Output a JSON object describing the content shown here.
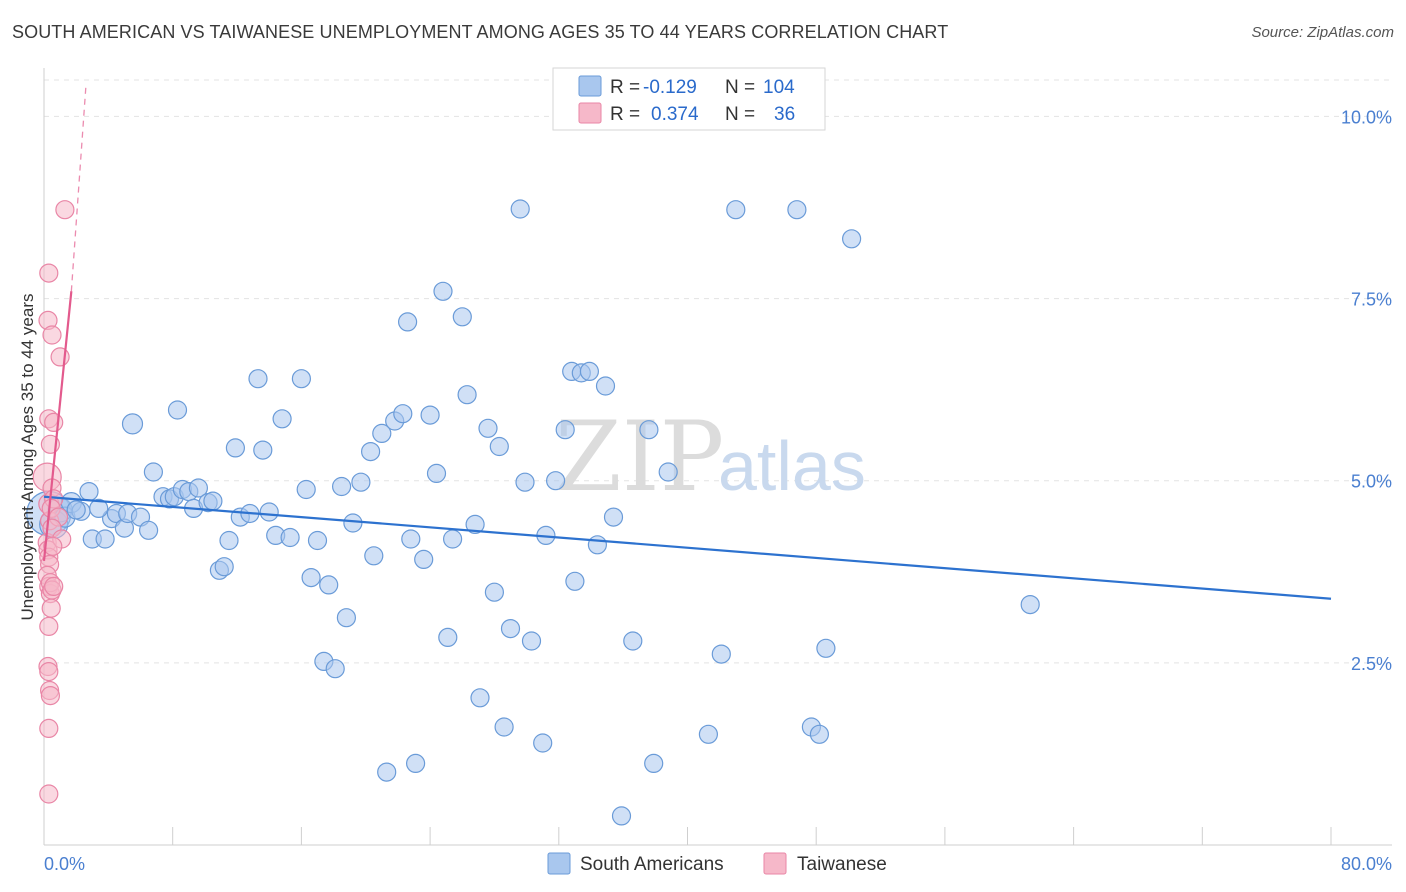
{
  "title": "SOUTH AMERICAN VS TAIWANESE UNEMPLOYMENT AMONG AGES 35 TO 44 YEARS CORRELATION CHART",
  "source": "Source: ZipAtlas.com",
  "watermark": {
    "zip": "ZIP",
    "atlas": "atlas"
  },
  "legend_top": {
    "rows": [
      {
        "r_label": "R = ",
        "r_value": "-0.129",
        "n_label": "N = ",
        "n_value": "104",
        "color": "#a9c7ee",
        "stroke": "#6a9bd8"
      },
      {
        "r_label": "R = ",
        "r_value": "0.374",
        "n_label": "N = ",
        "n_value": "36",
        "color": "#f6b8c9",
        "stroke": "#e986a6"
      }
    ]
  },
  "legend_bottom": [
    {
      "label": "South Americans",
      "color": "#a9c7ee",
      "stroke": "#6a9bd8"
    },
    {
      "label": "Taiwanese",
      "color": "#f6b8c9",
      "stroke": "#e986a6"
    }
  ],
  "chart_data": {
    "type": "scatter",
    "title": "SOUTH AMERICAN VS TAIWANESE UNEMPLOYMENT AMONG AGES 35 TO 44 YEARS CORRELATION CHART",
    "xlabel": "",
    "ylabel": "Unemployment Among Ages 35 to 44 years",
    "xlim": [
      0,
      80
    ],
    "ylim": [
      0,
      10.5
    ],
    "x_tick_labels": [
      "0.0%",
      "80.0%"
    ],
    "y_ticks": [
      2.5,
      5.0,
      7.5,
      10.0
    ],
    "y_tick_labels": [
      "2.5%",
      "5.0%",
      "7.5%",
      "10.0%"
    ],
    "x_minor_ticks": [
      0,
      8,
      16,
      24,
      32,
      40,
      48,
      56,
      64,
      72,
      80
    ],
    "grid": true,
    "series": [
      {
        "name": "South Americans",
        "color": "#a9c7ee",
        "stroke": "#6a9bd8",
        "trend": {
          "x": [
            0,
            80
          ],
          "y": [
            4.78,
            3.38
          ],
          "color": "#2d72cf"
        },
        "points": [
          [
            0.3,
            4.55,
            22
          ],
          [
            0.6,
            4.4,
            14
          ],
          [
            1.0,
            4.6,
            12
          ],
          [
            1.3,
            4.5,
            10
          ],
          [
            1.7,
            4.7,
            10
          ],
          [
            2.3,
            4.58,
            9
          ],
          [
            2.8,
            4.85,
            9
          ],
          [
            3.0,
            4.2,
            9
          ],
          [
            3.8,
            4.2,
            9
          ],
          [
            4.2,
            4.48,
            9
          ],
          [
            4.5,
            4.55,
            9
          ],
          [
            5.0,
            4.35,
            9
          ],
          [
            5.2,
            4.55,
            9
          ],
          [
            5.5,
            5.78,
            10
          ],
          [
            6.0,
            4.5,
            9
          ],
          [
            6.5,
            4.32,
            9
          ],
          [
            6.8,
            5.12,
            9
          ],
          [
            7.4,
            4.78,
            9
          ],
          [
            7.8,
            4.75,
            9
          ],
          [
            8.1,
            4.78,
            9
          ],
          [
            8.3,
            5.97,
            9
          ],
          [
            8.6,
            4.88,
            9
          ],
          [
            9.0,
            4.85,
            9
          ],
          [
            9.3,
            4.62,
            9
          ],
          [
            9.6,
            4.9,
            9
          ],
          [
            10.2,
            4.7,
            9
          ],
          [
            10.5,
            4.72,
            9
          ],
          [
            10.9,
            3.77,
            9
          ],
          [
            11.2,
            3.82,
            9
          ],
          [
            11.5,
            4.18,
            9
          ],
          [
            11.9,
            5.45,
            9
          ],
          [
            12.2,
            4.5,
            9
          ],
          [
            12.8,
            4.55,
            9
          ],
          [
            13.3,
            6.4,
            9
          ],
          [
            13.6,
            5.42,
            9
          ],
          [
            14.0,
            4.57,
            9
          ],
          [
            14.4,
            4.25,
            9
          ],
          [
            14.8,
            5.85,
            9
          ],
          [
            15.3,
            4.22,
            9
          ],
          [
            16.0,
            6.4,
            9
          ],
          [
            16.3,
            4.88,
            9
          ],
          [
            16.6,
            3.67,
            9
          ],
          [
            17.0,
            4.18,
            9
          ],
          [
            17.4,
            2.52,
            9
          ],
          [
            17.7,
            3.57,
            9
          ],
          [
            18.1,
            2.42,
            9
          ],
          [
            18.5,
            4.92,
            9
          ],
          [
            18.8,
            3.12,
            9
          ],
          [
            19.2,
            4.42,
            9
          ],
          [
            19.7,
            4.98,
            9
          ],
          [
            20.3,
            5.4,
            9
          ],
          [
            20.5,
            3.97,
            9
          ],
          [
            21.0,
            5.65,
            9
          ],
          [
            21.3,
            1.0,
            9
          ],
          [
            21.8,
            5.82,
            9
          ],
          [
            22.3,
            5.92,
            9
          ],
          [
            22.6,
            7.18,
            9
          ],
          [
            22.8,
            4.2,
            9
          ],
          [
            23.1,
            1.12,
            9
          ],
          [
            23.6,
            3.92,
            9
          ],
          [
            24.0,
            5.9,
            9
          ],
          [
            24.4,
            5.1,
            9
          ],
          [
            24.8,
            7.6,
            9
          ],
          [
            25.1,
            2.85,
            9
          ],
          [
            25.4,
            4.2,
            9
          ],
          [
            26.0,
            7.25,
            9
          ],
          [
            26.3,
            6.18,
            9
          ],
          [
            26.8,
            4.4,
            9
          ],
          [
            27.1,
            2.02,
            9
          ],
          [
            27.6,
            5.72,
            9
          ],
          [
            28.0,
            3.47,
            9
          ],
          [
            28.3,
            5.47,
            9
          ],
          [
            28.6,
            1.62,
            9
          ],
          [
            29.0,
            2.97,
            9
          ],
          [
            29.6,
            8.73,
            9
          ],
          [
            29.9,
            4.98,
            9
          ],
          [
            30.3,
            2.8,
            9
          ],
          [
            31.0,
            1.4,
            9
          ],
          [
            31.2,
            4.25,
            9
          ],
          [
            31.8,
            5.0,
            9
          ],
          [
            32.4,
            5.7,
            9
          ],
          [
            32.8,
            6.5,
            9
          ],
          [
            33.0,
            3.62,
            9
          ],
          [
            33.4,
            6.48,
            9
          ],
          [
            33.9,
            6.5,
            9
          ],
          [
            34.4,
            4.12,
            9
          ],
          [
            34.9,
            6.3,
            9
          ],
          [
            35.4,
            4.5,
            9
          ],
          [
            35.9,
            0.4,
            9
          ],
          [
            36.6,
            2.8,
            9
          ],
          [
            37.6,
            5.7,
            9
          ],
          [
            37.9,
            1.12,
            9
          ],
          [
            38.8,
            5.12,
            9
          ],
          [
            41.3,
            1.52,
            9
          ],
          [
            42.1,
            2.62,
            9
          ],
          [
            43.0,
            8.72,
            9
          ],
          [
            46.8,
            8.72,
            9
          ],
          [
            47.7,
            1.62,
            9
          ],
          [
            48.2,
            1.52,
            9
          ],
          [
            48.6,
            2.7,
            9
          ],
          [
            50.2,
            8.32,
            9
          ],
          [
            61.3,
            3.3,
            9
          ],
          [
            2.0,
            4.6,
            9
          ],
          [
            3.4,
            4.62,
            9
          ]
        ]
      },
      {
        "name": "Taiwanese",
        "color": "#f6b8c9",
        "stroke": "#e986a6",
        "trend": {
          "x": [
            0,
            1.7
          ],
          "y": [
            3.9,
            7.6
          ],
          "color": "#e35a8d",
          "extend_to": [
            2.6,
            10.4
          ]
        },
        "points": [
          [
            0.2,
            5.05,
            14
          ],
          [
            0.3,
            4.68,
            10
          ],
          [
            0.35,
            4.45,
            9
          ],
          [
            0.2,
            4.15,
            9
          ],
          [
            0.25,
            4.05,
            9
          ],
          [
            0.3,
            3.95,
            9
          ],
          [
            0.35,
            3.85,
            9
          ],
          [
            0.2,
            3.7,
            9
          ],
          [
            0.3,
            3.55,
            9
          ],
          [
            0.4,
            3.45,
            9
          ],
          [
            0.45,
            3.25,
            9
          ],
          [
            0.3,
            3.0,
            9
          ],
          [
            0.25,
            2.45,
            9
          ],
          [
            0.3,
            2.38,
            9
          ],
          [
            0.35,
            2.12,
            9
          ],
          [
            0.4,
            2.05,
            9
          ],
          [
            0.3,
            1.6,
            9
          ],
          [
            0.3,
            0.7,
            9
          ],
          [
            0.3,
            7.85,
            9
          ],
          [
            0.25,
            7.2,
            9
          ],
          [
            0.5,
            7.0,
            9
          ],
          [
            1.0,
            6.7,
            9
          ],
          [
            0.3,
            5.85,
            9
          ],
          [
            0.6,
            5.8,
            9
          ],
          [
            0.4,
            5.5,
            9
          ],
          [
            0.5,
            4.9,
            9
          ],
          [
            0.6,
            4.75,
            9
          ],
          [
            0.45,
            4.62,
            9
          ],
          [
            0.9,
            4.5,
            9
          ],
          [
            0.5,
            4.35,
            9
          ],
          [
            1.1,
            4.2,
            9
          ],
          [
            0.55,
            4.1,
            9
          ],
          [
            0.4,
            3.6,
            9
          ],
          [
            0.5,
            3.5,
            9
          ],
          [
            0.6,
            3.55,
            9
          ],
          [
            1.3,
            8.72,
            9
          ]
        ]
      }
    ]
  }
}
